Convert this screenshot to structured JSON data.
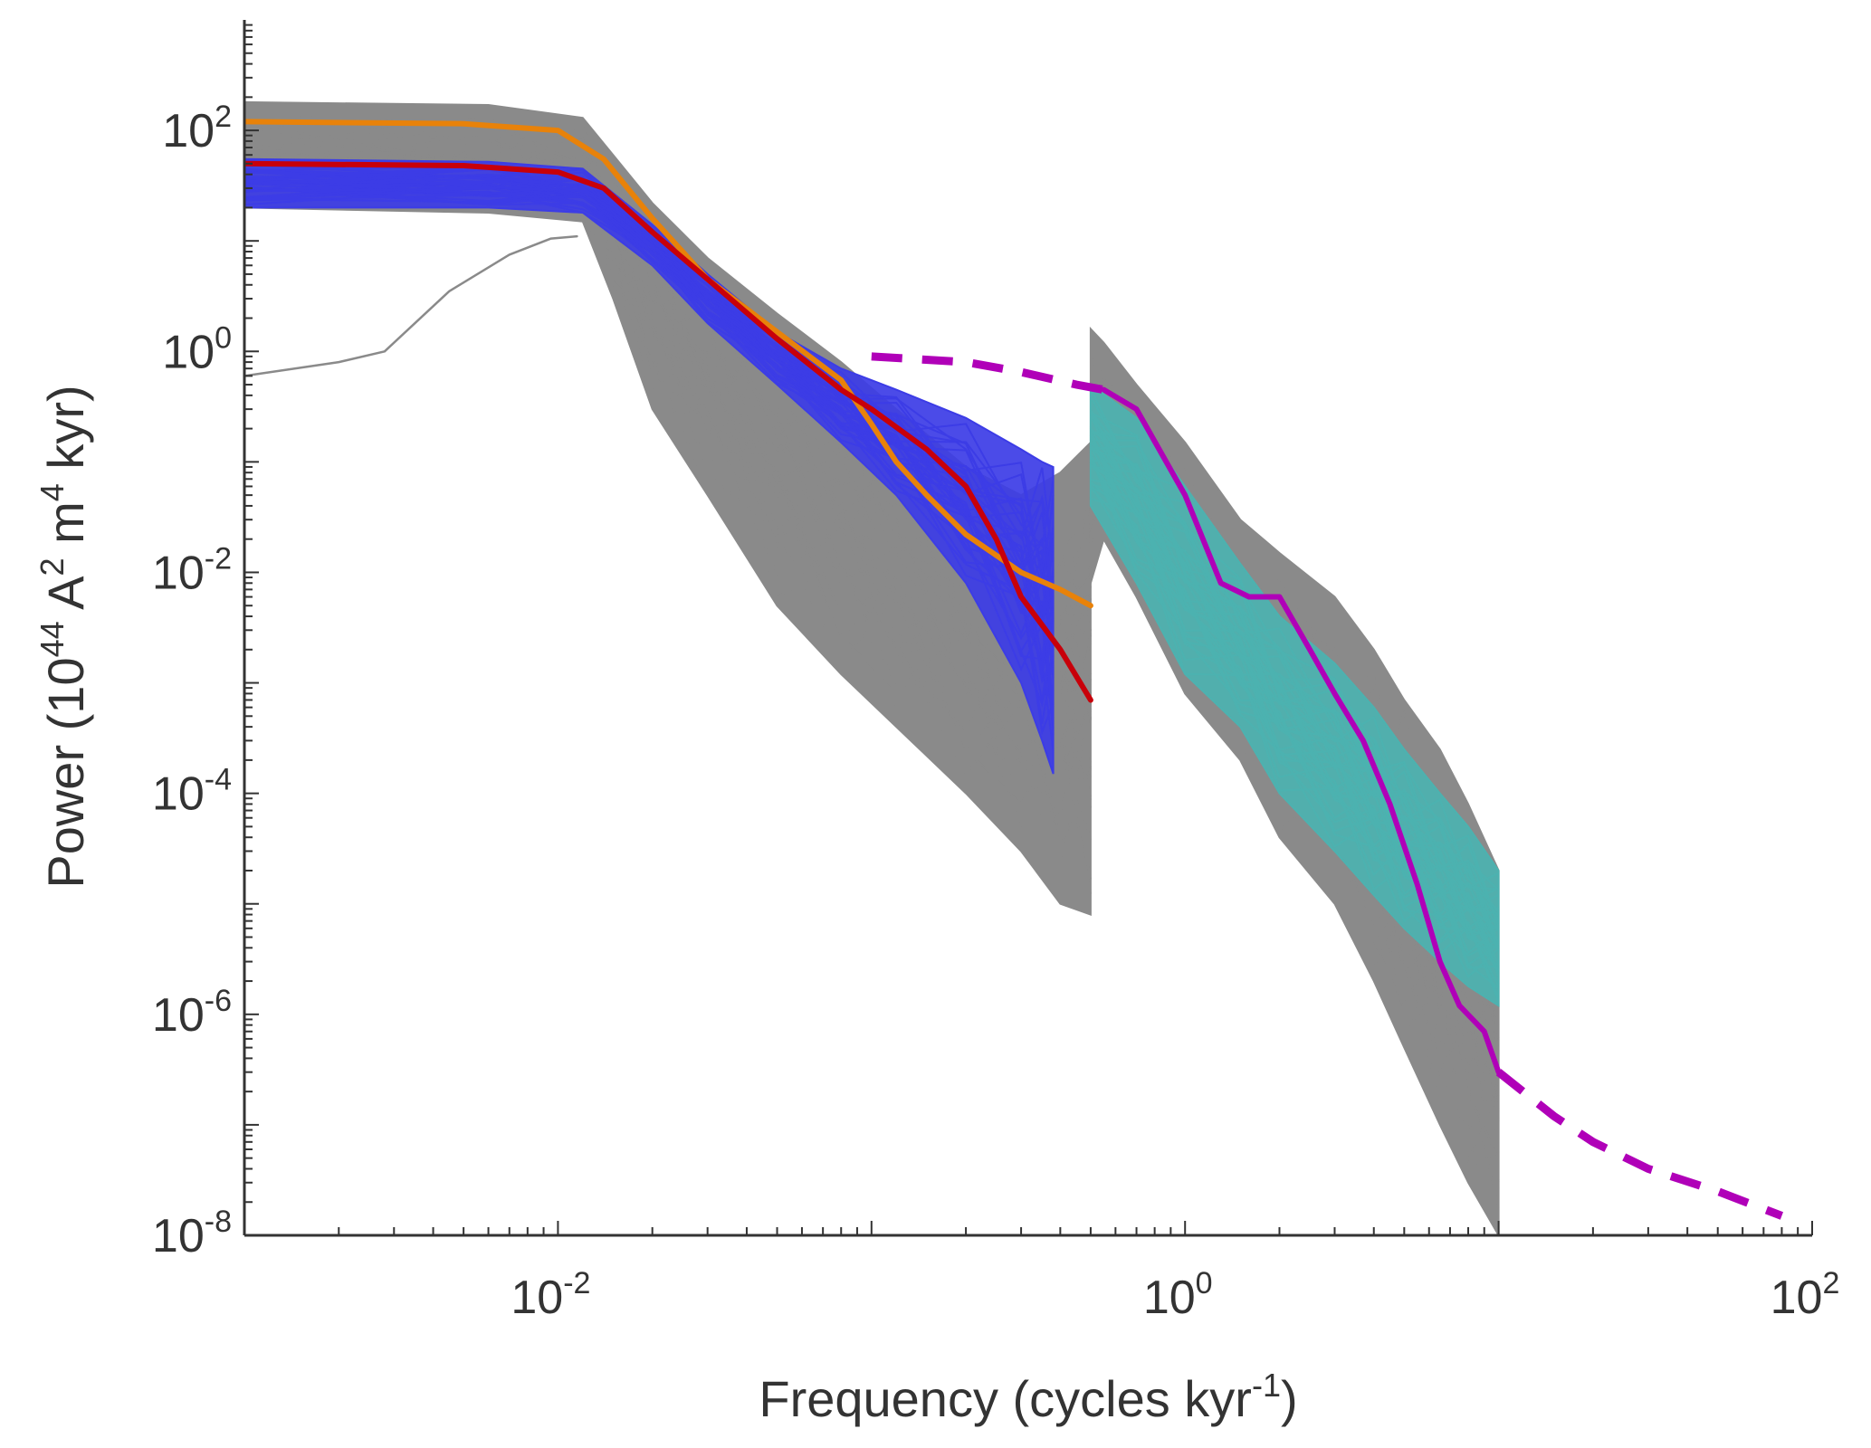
{
  "chart_data": {
    "type": "line",
    "title": "",
    "xlabel": "Frequency (cycles kyr",
    "xlabel_exp": "-1",
    "xlabel_close": ")",
    "ylabel": "Power (10",
    "ylabel_exp1": "44",
    "ylabel_mid": " A",
    "ylabel_exp2": "2",
    "ylabel_mid2": " m",
    "ylabel_exp3": "4",
    "ylabel_end": " kyr)",
    "xscale": "log",
    "yscale": "log",
    "xlim": [
      0.001,
      100
    ],
    "ylim": [
      1e-08,
      1000
    ],
    "x_ticks": [
      {
        "base": "10",
        "exp": "-2",
        "value": 0.01
      },
      {
        "base": "10",
        "exp": "0",
        "value": 1
      },
      {
        "base": "10",
        "exp": "2",
        "value": 100
      }
    ],
    "y_ticks": [
      {
        "base": "10",
        "exp": "2",
        "value": 100
      },
      {
        "base": "10",
        "exp": "0",
        "value": 1
      },
      {
        "base": "10",
        "exp": "-2",
        "value": 0.01
      },
      {
        "base": "10",
        "exp": "-4",
        "value": 0.0001
      },
      {
        "base": "10",
        "exp": "-6",
        "value": 1e-06
      },
      {
        "base": "10",
        "exp": "-8",
        "value": 1e-08
      }
    ],
    "grid": false,
    "colors": {
      "gray": "#8a8a8a",
      "blue": "#3c3ce6",
      "teal": "#4cb2b0",
      "orange": "#e8820a",
      "red": "#c8000a",
      "magenta": "#b000b8",
      "axis": "#333333"
    },
    "series": [
      {
        "name": "gray-ensemble-low-freq",
        "color": "gray",
        "style": "band",
        "x": [
          0.001,
          0.006,
          0.012,
          0.015,
          0.02,
          0.03,
          0.05,
          0.08,
          0.12,
          0.2,
          0.3,
          0.4,
          0.5
        ],
        "y_upper": [
          180,
          170,
          130,
          60,
          22,
          7,
          2.2,
          0.8,
          0.3,
          0.09,
          0.05,
          0.08,
          0.15
        ],
        "y_lower": [
          20,
          18,
          15,
          3,
          0.3,
          0.05,
          0.005,
          0.0012,
          0.0004,
          0.0001,
          3e-05,
          1e-05,
          8e-06
        ]
      },
      {
        "name": "gray-ensemble-high-freq",
        "color": "gray",
        "style": "band",
        "x": [
          0.5,
          0.55,
          0.7,
          1,
          1.5,
          2,
          3,
          4,
          5,
          6.5,
          8,
          10
        ],
        "y_upper": [
          1.6,
          1.2,
          0.5,
          0.15,
          0.03,
          0.015,
          0.006,
          0.002,
          0.0007,
          0.00025,
          8e-05,
          2e-05
        ],
        "y_lower": [
          0.008,
          0.02,
          0.006,
          0.0008,
          0.0002,
          4e-05,
          1e-05,
          2e-06,
          5e-07,
          1e-07,
          3e-08,
          1e-08
        ]
      },
      {
        "name": "gray-outlier",
        "color": "gray",
        "style": "line",
        "x": [
          0.001,
          0.002,
          0.0028,
          0.0045,
          0.007,
          0.0095,
          0.0115
        ],
        "y": [
          0.6,
          0.8,
          1.0,
          3.5,
          7.5,
          10.5,
          11
        ]
      },
      {
        "name": "blue-ensemble",
        "color": "blue",
        "style": "band",
        "x": [
          0.001,
          0.006,
          0.012,
          0.02,
          0.03,
          0.05,
          0.08,
          0.12,
          0.2,
          0.3,
          0.35,
          0.38
        ],
        "y_upper": [
          55,
          52,
          45,
          14,
          5,
          1.5,
          0.7,
          0.45,
          0.25,
          0.13,
          0.1,
          0.09
        ],
        "y_lower": [
          20,
          20,
          18,
          6,
          1.8,
          0.5,
          0.15,
          0.05,
          0.008,
          0.001,
          0.0003,
          0.00015
        ]
      },
      {
        "name": "teal-ensemble",
        "color": "teal",
        "style": "band",
        "x": [
          0.5,
          0.7,
          1,
          1.5,
          2,
          3,
          4,
          5,
          6.5,
          8,
          10
        ],
        "y_upper": [
          0.5,
          0.25,
          0.06,
          0.012,
          0.004,
          0.0015,
          0.0006,
          0.00025,
          0.0001,
          5e-05,
          2e-05
        ],
        "y_lower": [
          0.04,
          0.008,
          0.0012,
          0.0004,
          0.0001,
          3e-05,
          1.2e-05,
          6e-06,
          3e-06,
          1.8e-06,
          1.2e-06
        ]
      },
      {
        "name": "orange-line",
        "color": "orange",
        "style": "line",
        "x": [
          0.001,
          0.005,
          0.01,
          0.014,
          0.02,
          0.03,
          0.05,
          0.08,
          0.1,
          0.12,
          0.15,
          0.2,
          0.3,
          0.4,
          0.5
        ],
        "y": [
          120,
          115,
          100,
          55,
          16,
          4.5,
          1.5,
          0.55,
          0.22,
          0.1,
          0.05,
          0.022,
          0.01,
          0.007,
          0.005
        ]
      },
      {
        "name": "red-line",
        "color": "red",
        "style": "line",
        "x": [
          0.001,
          0.005,
          0.01,
          0.014,
          0.02,
          0.03,
          0.05,
          0.08,
          0.1,
          0.15,
          0.2,
          0.25,
          0.3,
          0.4,
          0.5
        ],
        "y": [
          50,
          48,
          42,
          30,
          12,
          4.5,
          1.3,
          0.45,
          0.3,
          0.13,
          0.06,
          0.02,
          0.006,
          0.002,
          0.0007
        ]
      },
      {
        "name": "magenta-solid",
        "color": "magenta",
        "style": "line",
        "x": [
          0.55,
          0.7,
          1,
          1.3,
          1.6,
          2,
          2.5,
          3,
          3.7,
          4.5,
          5.5,
          6.5,
          7.5,
          9,
          10
        ],
        "y": [
          0.45,
          0.3,
          0.05,
          0.008,
          0.006,
          0.006,
          0.002,
          0.0008,
          0.0003,
          8e-05,
          1.5e-05,
          3e-06,
          1.2e-06,
          7e-07,
          3e-07
        ]
      },
      {
        "name": "magenta-dashed-left",
        "color": "magenta",
        "style": "dashed",
        "x": [
          0.1,
          0.2,
          0.3,
          0.45,
          0.55
        ],
        "y": [
          0.9,
          0.8,
          0.65,
          0.5,
          0.45
        ]
      },
      {
        "name": "magenta-dashed-right",
        "color": "magenta",
        "style": "dashed",
        "x": [
          10,
          15,
          20,
          30,
          50,
          80
        ],
        "y": [
          3e-07,
          1.2e-07,
          7e-08,
          4e-08,
          2.5e-08,
          1.5e-08
        ]
      }
    ]
  }
}
